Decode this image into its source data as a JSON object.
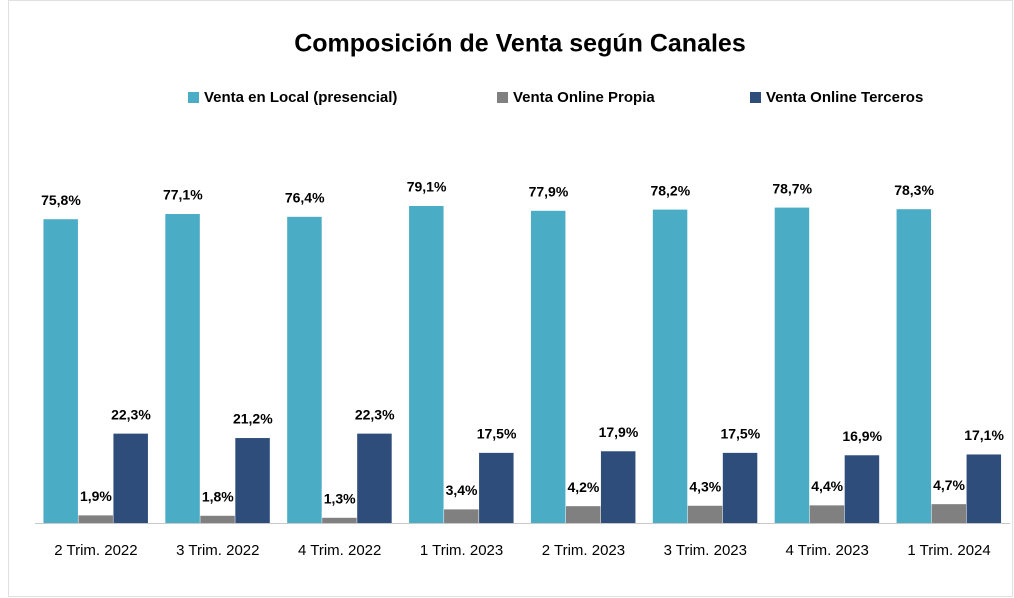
{
  "chart_data": {
    "type": "bar",
    "title": "Composición de Venta según Canales",
    "categories": [
      "2 Trim. 2022",
      "3 Trim. 2022",
      "4 Trim. 2022",
      "1 Trim. 2023",
      "2 Trim. 2023",
      "3 Trim. 2023",
      "4 Trim. 2023",
      "1 Trim. 2024"
    ],
    "series": [
      {
        "name": "Venta en Local (presencial)",
        "color": "#4bacc6",
        "values": [
          75.8,
          77.1,
          76.4,
          79.1,
          77.9,
          78.2,
          78.7,
          78.3
        ],
        "value_labels": [
          "75,8%",
          "77,1%",
          "76,4%",
          "79,1%",
          "77,9%",
          "78,2%",
          "78,7%",
          "78,3%"
        ]
      },
      {
        "name": "Venta  Online Propia",
        "color": "#808080",
        "values": [
          1.9,
          1.8,
          1.3,
          3.4,
          4.2,
          4.3,
          4.4,
          4.7
        ],
        "value_labels": [
          "1,9%",
          "1,8%",
          "1,3%",
          "3,4%",
          "4,2%",
          "4,3%",
          "4,4%",
          "4,7%"
        ]
      },
      {
        "name": "Venta  Online Terceros",
        "color": "#2e4d7b",
        "values": [
          22.3,
          21.2,
          22.3,
          17.5,
          17.9,
          17.5,
          16.9,
          17.1
        ],
        "value_labels": [
          "22,3%",
          "21,2%",
          "22,3%",
          "17,5%",
          "17,9%",
          "17,5%",
          "16,9%",
          "17,1%"
        ]
      }
    ],
    "legend": "top"
  }
}
